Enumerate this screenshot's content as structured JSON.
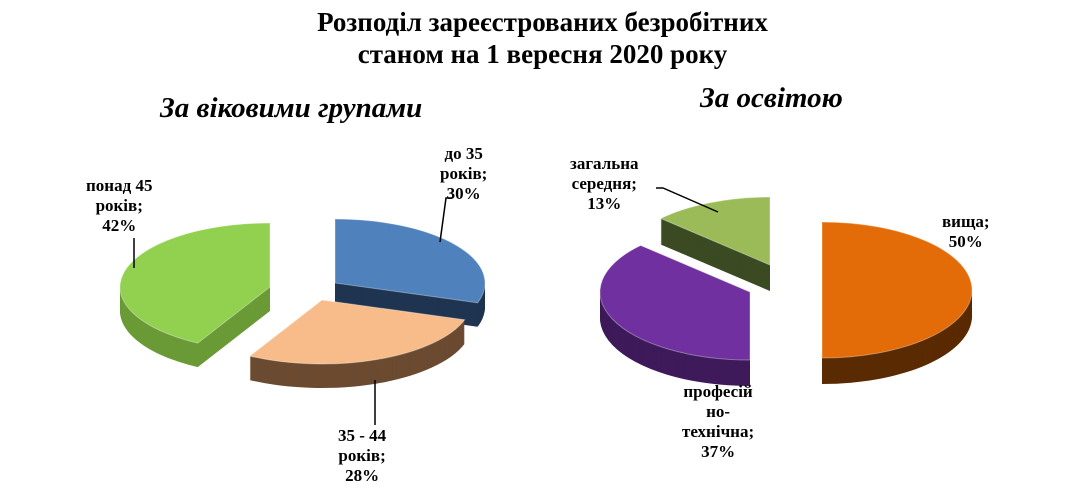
{
  "title_line1": "Розподіл зареєстрованих безробітних",
  "title_line2": "станом на 1 вересня 2020 року",
  "chart_data": [
    {
      "type": "pie",
      "title": "За віковими групами",
      "categories": [
        "до 35 років",
        "35 - 44 років",
        "понад 45 років"
      ],
      "values": [
        30,
        28,
        42
      ],
      "labels": [
        [
          "до 35",
          "років;",
          "30%"
        ],
        [
          "35 - 44",
          "років;",
          "28%"
        ],
        [
          "понад 45",
          "років;",
          "42%"
        ]
      ],
      "colors": [
        "#4f81bd",
        "#f7bc8a",
        "#92d050"
      ],
      "side_colors": [
        "#1f3450",
        "#6b4a30",
        "#6a9a36"
      ]
    },
    {
      "type": "pie",
      "title": "За освітою",
      "categories": [
        "вища",
        "професійно-технічна",
        "загальна середня"
      ],
      "values": [
        50,
        37,
        13
      ],
      "labels": [
        [
          "вища;",
          "50%"
        ],
        [
          "професій",
          "но-",
          "технічна;",
          "37%"
        ],
        [
          "загальна",
          "середня;",
          "13%"
        ]
      ],
      "colors": [
        "#e36c09",
        "#7030a0",
        "#9bbb59"
      ],
      "side_colors": [
        "#5a2a02",
        "#3e1a5a",
        "#3b4a22"
      ]
    }
  ]
}
